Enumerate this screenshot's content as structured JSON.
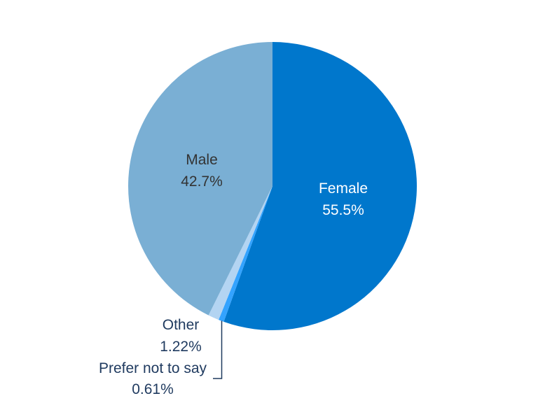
{
  "chart_data": {
    "type": "pie",
    "title": "",
    "slices": [
      {
        "label": "Female",
        "value": 55.5,
        "display": "55.5%",
        "color": "#0077cc"
      },
      {
        "label": "Prefer not to say",
        "value": 0.61,
        "display": "0.61%",
        "color": "#33a3ff"
      },
      {
        "label": "Other",
        "value": 1.22,
        "display": "1.22%",
        "color": "#b3d4f2"
      },
      {
        "label": "Male",
        "value": 42.7,
        "display": "42.7%",
        "color": "#7aafd4"
      }
    ],
    "start_angle": "12 o'clock",
    "direction": "clockwise",
    "label_colors": {
      "inside_dark_slice": "#ffffff",
      "inside_light_slice": "#333333",
      "outside": "#1f3a5f",
      "leader_line": "#1f3a5f"
    }
  }
}
